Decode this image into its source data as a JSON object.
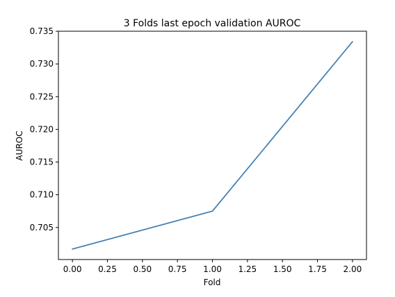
{
  "chart_data": {
    "type": "line",
    "title": "3 Folds last epoch validation AUROC",
    "xlabel": "Fold",
    "ylabel": "AUROC",
    "xlim": [
      -0.1,
      2.1
    ],
    "ylim": [
      0.7001,
      0.735
    ],
    "x_ticks": [
      "0.00",
      "0.25",
      "0.50",
      "0.75",
      "1.00",
      "1.25",
      "1.50",
      "1.75",
      "2.00"
    ],
    "y_ticks": [
      "0.705",
      "0.710",
      "0.715",
      "0.720",
      "0.725",
      "0.730",
      "0.735"
    ],
    "grid": false,
    "series": [
      {
        "color": "#4682b4",
        "x": [
          0,
          1,
          2
        ],
        "y": [
          0.7017,
          0.7075,
          0.7334
        ]
      }
    ]
  }
}
